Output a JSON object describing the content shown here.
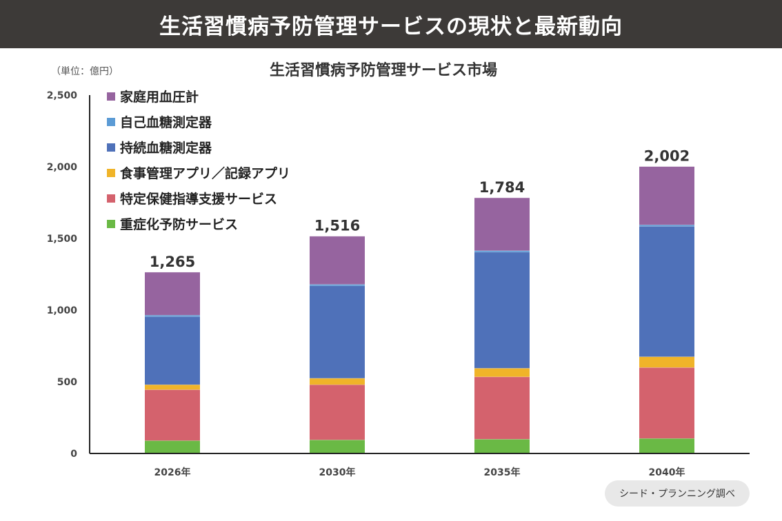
{
  "header": {
    "title": "生活習慣病予防管理サービスの現状と最新動向"
  },
  "chart": {
    "title": "生活習慣病予防管理サービス市場",
    "unit": "（単位：億円）"
  },
  "source": "シード・プランニング調べ",
  "chart_data": {
    "type": "bar",
    "stacked": true,
    "title": "生活習慣病予防管理サービス市場",
    "ylabel": "（単位：億円）",
    "xlabel": "",
    "ylim": [
      0,
      2500
    ],
    "yticks": [
      "0",
      "500",
      "1,000",
      "1,500",
      "2,000",
      "2,500"
    ],
    "grid": false,
    "legend_position": "top-left",
    "categories": [
      "2026年",
      "2030年",
      "2035年",
      "2040年"
    ],
    "totals": [
      "1,265",
      "1,516",
      "1,784",
      "2,002"
    ],
    "series": [
      {
        "name": "重症化予防サービス",
        "color": "#6ab945",
        "values": [
          90,
          95,
          100,
          105
        ]
      },
      {
        "name": "特定保健指導支援サービス",
        "color": "#d4626d",
        "values": [
          355,
          385,
          435,
          495
        ]
      },
      {
        "name": "食事管理アプリ／記録アプリ",
        "color": "#f0b429",
        "values": [
          35,
          45,
          60,
          75
        ]
      },
      {
        "name": "持続血糖測定器",
        "color": "#4f71b9",
        "values": [
          475,
          645,
          810,
          910
        ]
      },
      {
        "name": "自己血糖測定器",
        "color": "#5b9bd5",
        "values": [
          10,
          10,
          10,
          10
        ]
      },
      {
        "name": "家庭用血圧計",
        "color": "#96649f",
        "values": [
          300,
          336,
          369,
          407
        ]
      }
    ]
  }
}
